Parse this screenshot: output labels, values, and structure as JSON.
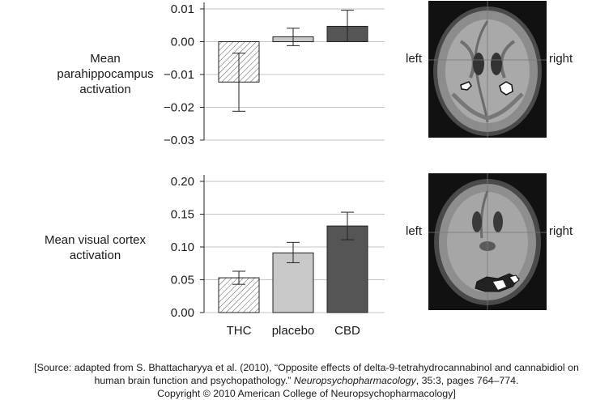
{
  "chart_data": [
    {
      "type": "bar",
      "categories": [
        "THC",
        "placebo",
        "CBD"
      ],
      "values": [
        -0.0123,
        0.0015,
        0.0047
      ],
      "error_low": [
        -0.0212,
        -0.0012,
        0.0
      ],
      "error_high": [
        -0.0035,
        0.0041,
        0.0096
      ],
      "ylabel": "Mean parahippocampus activation",
      "ylim": [
        -0.03,
        0.01
      ],
      "yticks": [
        0.01,
        0.0,
        -0.01,
        -0.02,
        -0.03
      ],
      "ytick_labels": [
        "0.01",
        "0.00",
        "−0.01",
        "−0.02",
        "−0.03"
      ],
      "grid": true
    },
    {
      "type": "bar",
      "categories": [
        "THC",
        "placebo",
        "CBD"
      ],
      "values": [
        0.053,
        0.091,
        0.132
      ],
      "error_low": [
        0.043,
        0.076,
        0.111
      ],
      "error_high": [
        0.063,
        0.107,
        0.153
      ],
      "ylabel": "Mean visual cortex activation",
      "ylim": [
        0.0,
        0.2
      ],
      "yticks": [
        0.2,
        0.15,
        0.1,
        0.05,
        0.0
      ],
      "ytick_labels": [
        "0.20",
        "0.15",
        "0.10",
        "0.05",
        "0.00"
      ],
      "grid": true
    }
  ],
  "bar_styles": [
    {
      "category": "THC",
      "fill": "#ffffff",
      "pattern": "diagonal-hatch"
    },
    {
      "category": "placebo",
      "fill": "#c8c8c8",
      "pattern": "none"
    },
    {
      "category": "CBD",
      "fill": "#555555",
      "pattern": "none"
    }
  ],
  "brain_images": [
    {
      "left_label": "left",
      "right_label": "right"
    },
    {
      "left_label": "left",
      "right_label": "right"
    }
  ],
  "ylabels": {
    "top": [
      "Mean",
      "parahippocampus",
      "activation"
    ],
    "bottom": [
      "Mean visual cortex",
      "activation"
    ]
  },
  "source": {
    "line1": "[Source: adapted from S. Bhattacharyya et al. (2010), “Opposite effects of delta-9-tetrahydrocannabinol and cannabidiol on",
    "line2_pre": "human brain function and psychopathology.” ",
    "line2_journal": "Neuropsychopharmacology",
    "line2_post": ", 35:3, pages 764–774.",
    "line3": "Copyright © 2010 American College of Neuropsychopharmacology]"
  }
}
